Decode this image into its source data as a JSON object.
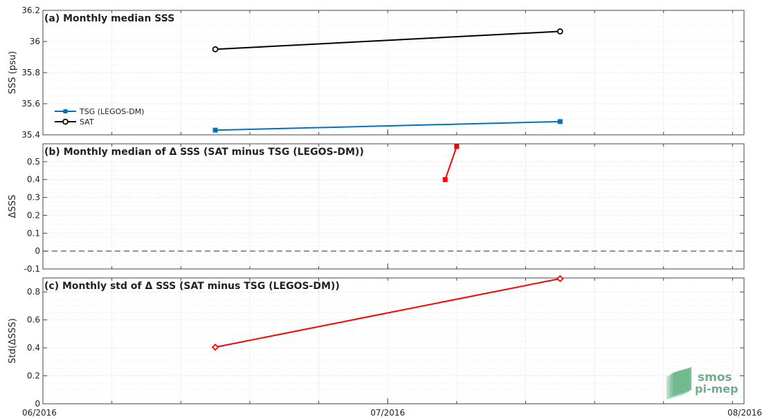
{
  "logo": {
    "line1": "smos",
    "line2": "pi-mep"
  },
  "x_axis": {
    "tick_labels": [
      "06/2016",
      "07/2016",
      "08/2016"
    ],
    "range": [
      "2016-06-01",
      "2016-08-01"
    ]
  },
  "chart_data": [
    {
      "type": "line",
      "title": "(a) Monthly median SSS",
      "ylabel": "SSS (psu)",
      "xlabel": "",
      "ylim": [
        35.4,
        36.2
      ],
      "yticks": [
        35.4,
        35.6,
        35.8,
        36,
        36.2
      ],
      "ytick_labels": [
        "35.4",
        "35.6",
        "35.8",
        "36",
        "36.2"
      ],
      "grid": true,
      "legend": {
        "position": "lower-left",
        "entries": [
          "TSG (LEGOS-DM)",
          "SAT"
        ]
      },
      "series": [
        {
          "name": "TSG (LEGOS-DM)",
          "color": "#0072bd",
          "marker": "square",
          "x": [
            "2016-06-16",
            "2016-07-16"
          ],
          "y": [
            35.43,
            35.485
          ]
        },
        {
          "name": "SAT",
          "color": "#000000",
          "marker": "circle-open",
          "x": [
            "2016-06-16",
            "2016-07-16"
          ],
          "y": [
            35.95,
            36.065
          ]
        }
      ]
    },
    {
      "type": "line",
      "title": "(b) Monthly median of Δ SSS (SAT minus TSG (LEGOS-DM))",
      "ylabel": "ΔSSS",
      "xlabel": "",
      "ylim": [
        -0.1,
        0.6
      ],
      "yticks": [
        -0.1,
        0,
        0.1,
        0.2,
        0.3,
        0.4,
        0.5
      ],
      "ytick_labels": [
        "-0.1",
        "0",
        "0.1",
        "0.2",
        "0.3",
        "0.4",
        "0.5"
      ],
      "grid": true,
      "reference_line": {
        "y": 0,
        "style": "dashed",
        "color": "#555555"
      },
      "series": [
        {
          "color": "#ff0000",
          "marker": "square",
          "x": [
            "2016-07-06",
            "2016-07-07"
          ],
          "y": [
            0.4,
            0.585
          ]
        }
      ]
    },
    {
      "type": "line",
      "title": "(c) Monthly std of Δ SSS (SAT minus TSG (LEGOS-DM))",
      "ylabel": "Std(ΔSSS)",
      "xlabel": "",
      "ylim": [
        0,
        0.9
      ],
      "yticks": [
        0,
        0.2,
        0.4,
        0.6,
        0.8
      ],
      "ytick_labels": [
        "0",
        "0.2",
        "0.4",
        "0.6",
        "0.8"
      ],
      "grid": true,
      "series": [
        {
          "color": "#ff0000",
          "marker": "diamond",
          "x": [
            "2016-06-16",
            "2016-07-16"
          ],
          "y": [
            0.405,
            0.895
          ]
        }
      ]
    }
  ]
}
